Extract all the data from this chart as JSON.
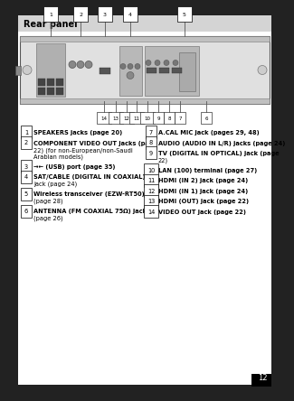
{
  "title": "Rear panel",
  "title_bg": "#d4d4d4",
  "outer_bg": "#222222",
  "left_items": [
    {
      "num": "1",
      "text": "SPEAKERS jacks (page 20)"
    },
    {
      "num": "2",
      "text": "COMPONENT VIDEO OUT jacks (page\n22) (for non-European/non-Saudi\nArabian models)"
    },
    {
      "num": "3",
      "text": "→← (USB) port (page 35)"
    },
    {
      "num": "4",
      "text": "SAT/CABLE (DIGITAL IN COAXIAL)\njack (page 24)"
    },
    {
      "num": "5",
      "text": "Wireless transceiver (EZW-RT50) slot\n(page 28)"
    },
    {
      "num": "6",
      "text": "ANTENNA (FM COAXIAL 75Ω) jack\n(page 26)"
    }
  ],
  "right_items": [
    {
      "num": "7",
      "text": "A.CAL MIC jack (pages 29, 48)"
    },
    {
      "num": "8",
      "text": "AUDIO (AUDIO IN L/R) jacks (page 24)"
    },
    {
      "num": "9",
      "text": "TV (DIGITAL IN OPTICAL) jack (page\n22)"
    },
    {
      "num": "10",
      "text": "LAN (100) terminal (page 27)"
    },
    {
      "num": "11",
      "text": "HDMI (IN 2) jack (page 24)"
    },
    {
      "num": "12",
      "text": "HDMI (IN 1) jack (page 24)"
    },
    {
      "num": "13",
      "text": "HDMI (OUT) jack (page 22)"
    },
    {
      "num": "14",
      "text": "VIDEO OUT jack (page 22)"
    }
  ]
}
